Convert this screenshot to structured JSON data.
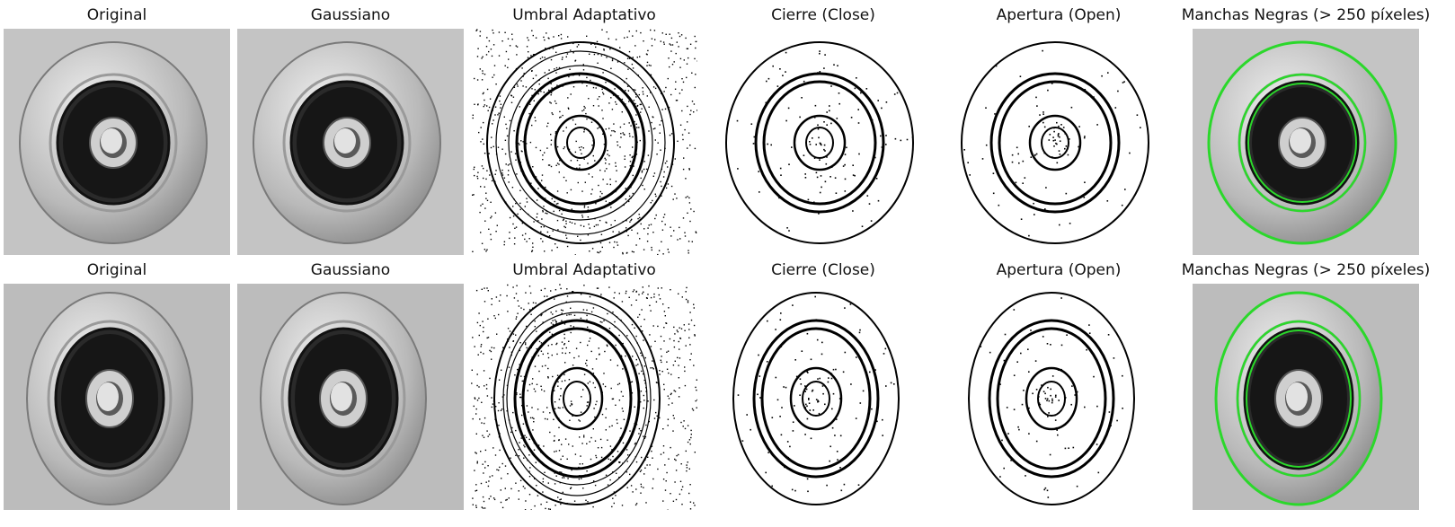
{
  "rows": [
    {
      "panels": [
        {
          "title": "Original",
          "kind": "photo",
          "variant": 1
        },
        {
          "title": "Gaussiano",
          "kind": "photo",
          "variant": 1
        },
        {
          "title": "Umbral Adaptativo",
          "kind": "threshold",
          "variant": 1
        },
        {
          "title": "Cierre (Close)",
          "kind": "close",
          "variant": 1
        },
        {
          "title": "Apertura (Open)",
          "kind": "open",
          "variant": 1
        },
        {
          "title": "Manchas Negras (> 250 píxeles)",
          "kind": "contours",
          "variant": 1
        }
      ]
    },
    {
      "panels": [
        {
          "title": "Original",
          "kind": "photo",
          "variant": 2
        },
        {
          "title": "Gaussiano",
          "kind": "photo",
          "variant": 2
        },
        {
          "title": "Umbral Adaptativo",
          "kind": "threshold",
          "variant": 2
        },
        {
          "title": "Cierre (Close)",
          "kind": "close",
          "variant": 2
        },
        {
          "title": "Apertura (Open)",
          "kind": "open",
          "variant": 2
        },
        {
          "title": "Manchas Negras (> 250 píxeles)",
          "kind": "contours",
          "variant": 2
        }
      ]
    }
  ],
  "colors": {
    "contour": "#2bd82b",
    "background": "#bdbdbd"
  }
}
